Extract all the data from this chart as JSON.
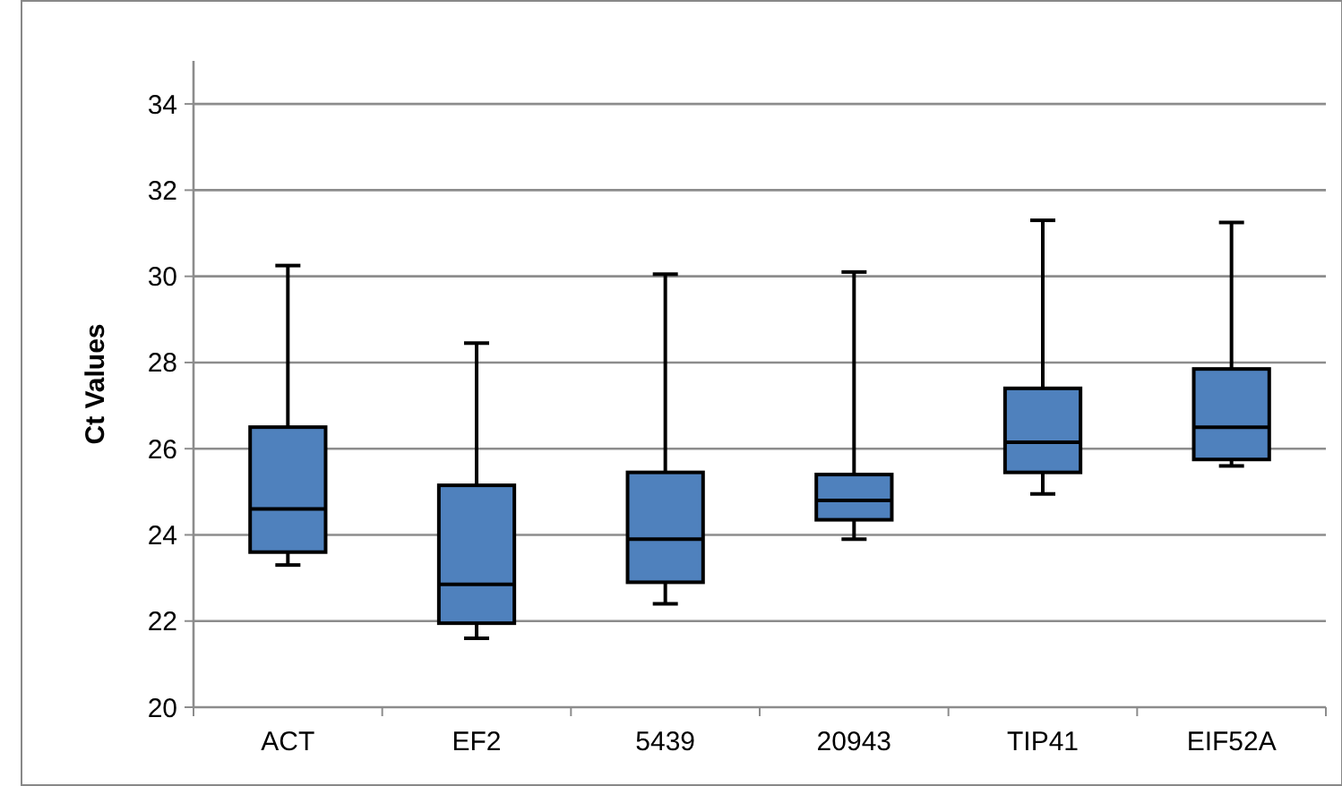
{
  "chart_data": {
    "type": "box",
    "ylabel": "Ct Values",
    "categories": [
      "ACT",
      "EF2",
      "5439",
      "20943",
      "TIP41",
      "EIF52A"
    ],
    "color": "#4f81bd",
    "ylim": [
      20,
      35
    ],
    "yticks": [
      20,
      22,
      24,
      26,
      28,
      30,
      32,
      34
    ],
    "grid": "y",
    "boxes": [
      {
        "low": 23.3,
        "q1": 23.6,
        "median": 24.6,
        "q3": 26.5,
        "high": 30.25
      },
      {
        "low": 21.6,
        "q1": 21.95,
        "median": 22.85,
        "q3": 25.15,
        "high": 28.45
      },
      {
        "low": 22.4,
        "q1": 22.9,
        "median": 23.9,
        "q3": 25.45,
        "high": 30.05
      },
      {
        "low": 23.9,
        "q1": 24.35,
        "median": 24.8,
        "q3": 25.4,
        "high": 30.1
      },
      {
        "low": 24.95,
        "q1": 25.45,
        "median": 26.15,
        "q3": 27.4,
        "high": 31.3
      },
      {
        "low": 25.6,
        "q1": 25.75,
        "median": 26.5,
        "q3": 27.85,
        "high": 31.25
      }
    ]
  }
}
